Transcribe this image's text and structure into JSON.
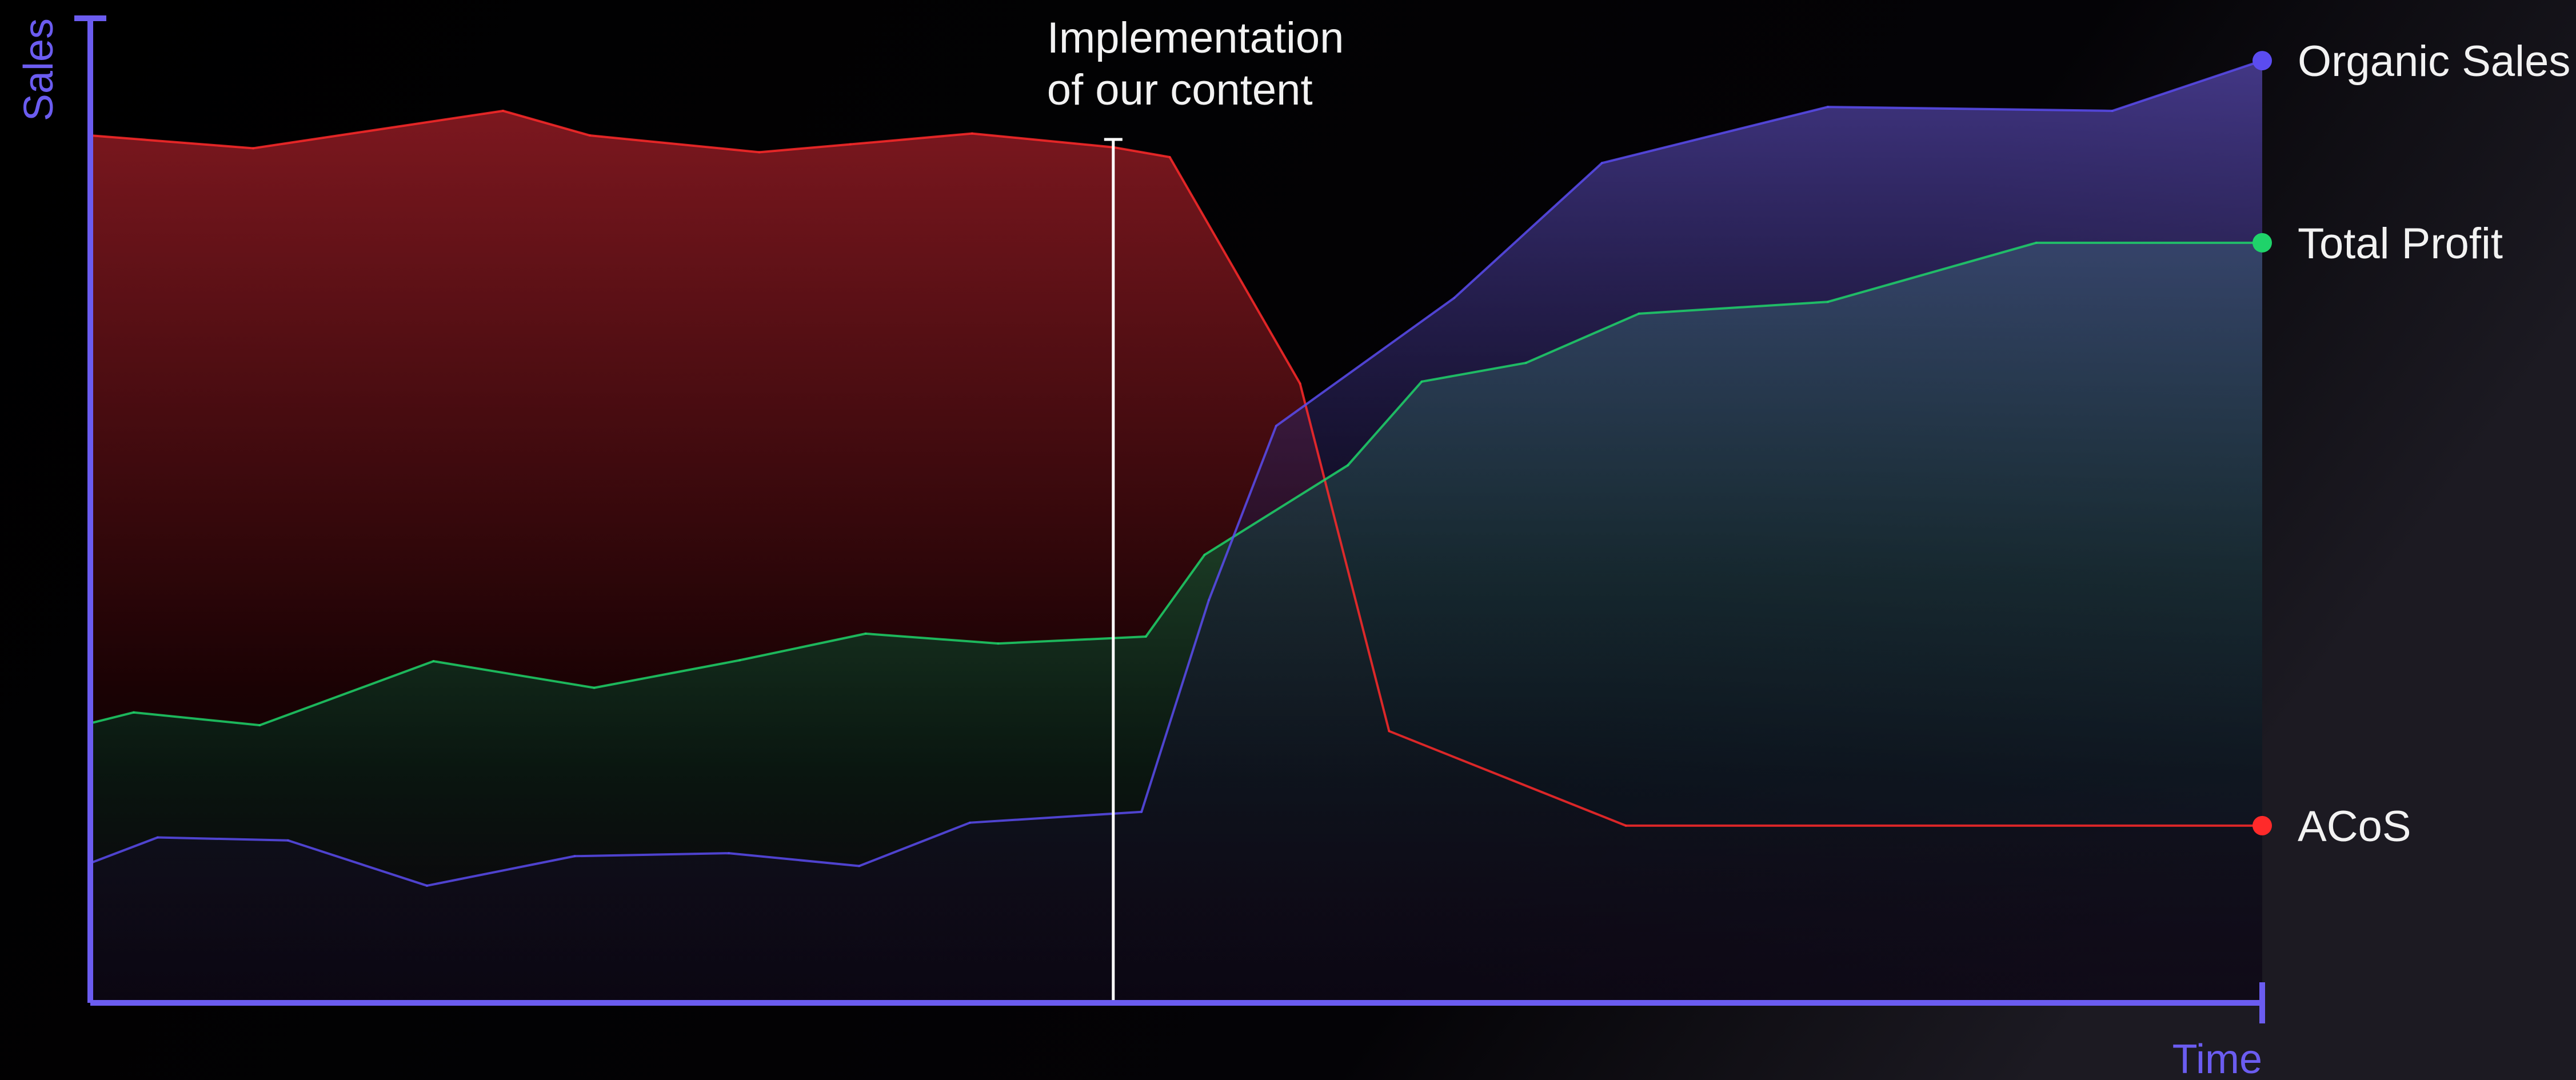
{
  "chart_data": {
    "type": "area",
    "title": "",
    "xlabel": "Time",
    "ylabel": "Sales",
    "xlim": [
      0,
      100
    ],
    "ylim": [
      0,
      100
    ],
    "grid": false,
    "legend": "right, labels at series endpoints",
    "annotation": {
      "x": 47.1,
      "lines": [
        "Implementation",
        "of our content"
      ]
    },
    "series": [
      {
        "name": "ACoS",
        "color": "#ff2a2a",
        "x": [
          0,
          7.5,
          19,
          23,
          30.8,
          35,
          40.6,
          47.1,
          49.7,
          55.7,
          59.8,
          70.7,
          100
        ],
        "y": [
          88.1,
          86.8,
          90.6,
          88.1,
          86.4,
          87.2,
          88.3,
          86.9,
          85.9,
          62.9,
          27.6,
          18.0,
          18.0
        ]
      },
      {
        "name": "Total Profit",
        "color": "#1fd36a",
        "x": [
          0,
          2,
          7.8,
          15.8,
          23.2,
          29.9,
          35.7,
          41.8,
          48.6,
          51.3,
          57.9,
          61.3,
          66.1,
          71.3,
          80,
          89.6,
          100
        ],
        "y": [
          28.4,
          29.5,
          28.2,
          34.7,
          32.0,
          34.8,
          37.5,
          36.5,
          37.2,
          45.5,
          54.6,
          63.1,
          65.0,
          70.0,
          71.2,
          77.2,
          77.2
        ]
      },
      {
        "name": "Organic Sales",
        "color": "#5b4cf0",
        "x": [
          0,
          3.1,
          9.1,
          15.5,
          22.3,
          29.4,
          35.4,
          40.5,
          48.4,
          51.5,
          54.6,
          62.8,
          69.6,
          80,
          93.1,
          100
        ],
        "y": [
          14.2,
          16.8,
          16.5,
          11.9,
          14.9,
          15.2,
          13.9,
          18.3,
          19.4,
          40.9,
          58.6,
          71.6,
          85.3,
          91.0,
          90.6,
          95.7
        ]
      }
    ]
  }
}
